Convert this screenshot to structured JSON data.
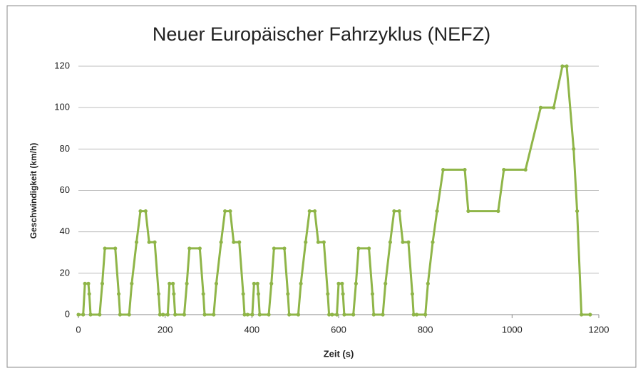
{
  "chart_data": {
    "type": "line",
    "title": "Neuer Europäischer Fahrzyklus (NEFZ)",
    "x_label": "Zeit (s)",
    "y_label": "Geschwindigkeit  (km/h)",
    "xlim": [
      0,
      1200
    ],
    "xticks": [
      0,
      200,
      400,
      600,
      800,
      1000,
      1200
    ],
    "ylim": [
      0,
      120
    ],
    "yticks": [
      0,
      20,
      40,
      60,
      80,
      100,
      120
    ],
    "grid": true,
    "series": [
      {
        "color": "#8fb548",
        "x": [
          0,
          11,
          15,
          23,
          25,
          28,
          49,
          55,
          61,
          85,
          93,
          96,
          117,
          123,
          134,
          143,
          155,
          163,
          176,
          185,
          188,
          195,
          206,
          210,
          218,
          220,
          223,
          244,
          250,
          256,
          280,
          288,
          291,
          312,
          318,
          329,
          338,
          350,
          358,
          371,
          380,
          383,
          390,
          401,
          405,
          413,
          415,
          418,
          439,
          445,
          451,
          475,
          483,
          486,
          507,
          513,
          524,
          533,
          545,
          553,
          566,
          575,
          578,
          585,
          596,
          600,
          608,
          610,
          613,
          634,
          640,
          646,
          670,
          678,
          681,
          702,
          708,
          719,
          728,
          740,
          748,
          761,
          770,
          773,
          780,
          800,
          806,
          817,
          827,
          841,
          891,
          899,
          968,
          981,
          1031,
          1066,
          1096,
          1116,
          1126,
          1142,
          1150,
          1160,
          1180
        ],
        "values": [
          0,
          0,
          15,
          15,
          10,
          0,
          0,
          15,
          32,
          32,
          10,
          0,
          0,
          15,
          35,
          50,
          50,
          35,
          35,
          10,
          0,
          0,
          0,
          15,
          15,
          10,
          0,
          0,
          15,
          32,
          32,
          10,
          0,
          0,
          15,
          35,
          50,
          50,
          35,
          35,
          10,
          0,
          0,
          0,
          15,
          15,
          10,
          0,
          0,
          15,
          32,
          32,
          10,
          0,
          0,
          15,
          35,
          50,
          50,
          35,
          35,
          10,
          0,
          0,
          0,
          15,
          15,
          10,
          0,
          0,
          15,
          32,
          32,
          10,
          0,
          0,
          15,
          35,
          50,
          50,
          35,
          35,
          10,
          0,
          0,
          0,
          15,
          35,
          50,
          70,
          70,
          50,
          50,
          70,
          70,
          100,
          100,
          120,
          120,
          80,
          50,
          0,
          0
        ]
      }
    ]
  }
}
